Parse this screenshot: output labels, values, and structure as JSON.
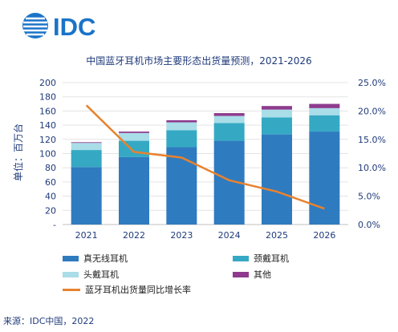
{
  "logo": {
    "text": "IDC"
  },
  "source": "来源：IDC中国，2022",
  "chart_data": {
    "type": "bar",
    "stacked": true,
    "title": "中国蓝牙耳机市场主要形态出货量预测，2021-2026",
    "ylabel": "单位：百万台",
    "categories": [
      "2021",
      "2022",
      "2023",
      "2024",
      "2025",
      "2026"
    ],
    "ylim": [
      0,
      200
    ],
    "yticks": [
      0,
      20,
      40,
      60,
      80,
      100,
      120,
      140,
      160,
      180,
      200
    ],
    "ytick_labels": [
      "-",
      "20",
      "40",
      "60",
      "80",
      "100",
      "120",
      "140",
      "160",
      "180",
      "200"
    ],
    "y2lim": [
      0,
      25
    ],
    "y2ticks": [
      0,
      5,
      10,
      15,
      20,
      25
    ],
    "y2tick_labels": [
      "0.0%",
      "5.0%",
      "10.0%",
      "15.0%",
      "20.0%",
      "25.0%"
    ],
    "series": [
      {
        "name": "真无线耳机",
        "color": "#2f7bbf",
        "values": [
          81,
          95,
          109,
          118,
          127,
          131
        ]
      },
      {
        "name": "颈戴耳机",
        "color": "#35a9c4",
        "values": [
          24,
          23,
          24,
          25,
          24,
          23
        ]
      },
      {
        "name": "头戴耳机",
        "color": "#a9dde8",
        "values": [
          10,
          11,
          11,
          10,
          11,
          10
        ]
      },
      {
        "name": "其他",
        "color": "#8e3b8e",
        "values": [
          1,
          2,
          3,
          4,
          5,
          6
        ]
      }
    ],
    "line": {
      "name": "蓝牙耳机出货量同比增长率",
      "color": "#e8822e",
      "values": [
        21.0,
        12.8,
        11.8,
        7.8,
        5.8,
        2.8
      ]
    },
    "legend_position": "bottom"
  }
}
